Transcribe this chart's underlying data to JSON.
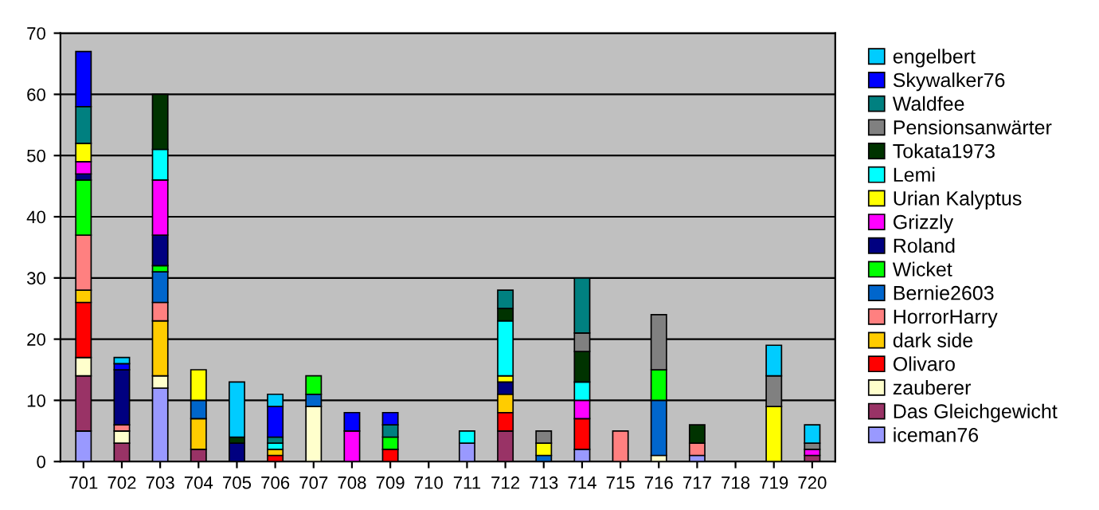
{
  "chart_data": {
    "type": "bar",
    "stacked": true,
    "categories": [
      "701",
      "702",
      "703",
      "704",
      "705",
      "706",
      "707",
      "708",
      "709",
      "710",
      "711",
      "712",
      "713",
      "714",
      "715",
      "716",
      "717",
      "718",
      "719",
      "720"
    ],
    "ylim": [
      0,
      70
    ],
    "yticks": [
      0,
      10,
      20,
      30,
      40,
      50,
      60,
      70
    ],
    "grid": "y",
    "legend": "right",
    "series": [
      {
        "name": "iceman76",
        "color": "#9999ff",
        "values": [
          5,
          null,
          12,
          null,
          null,
          null,
          null,
          null,
          null,
          null,
          3,
          null,
          null,
          2,
          null,
          null,
          1,
          null,
          null,
          null
        ]
      },
      {
        "name": "Das Gleichgewicht",
        "color": "#993366",
        "values": [
          9,
          3,
          null,
          2,
          null,
          null,
          null,
          null,
          null,
          null,
          null,
          5,
          null,
          null,
          null,
          null,
          null,
          null,
          null,
          1
        ]
      },
      {
        "name": "zauberer",
        "color": "#ffffcc",
        "values": [
          3,
          2,
          2,
          null,
          null,
          null,
          9,
          null,
          null,
          null,
          null,
          null,
          null,
          null,
          null,
          1,
          null,
          null,
          null,
          null
        ]
      },
      {
        "name": "Olivaro",
        "color": "#ff0000",
        "values": [
          9,
          null,
          null,
          null,
          null,
          1,
          null,
          null,
          2,
          null,
          null,
          3,
          null,
          5,
          null,
          null,
          null,
          null,
          null,
          null
        ]
      },
      {
        "name": "dark side",
        "color": "#ffcc00",
        "values": [
          2,
          null,
          9,
          5,
          null,
          1,
          null,
          null,
          null,
          null,
          null,
          3,
          null,
          null,
          null,
          null,
          null,
          null,
          null,
          null
        ]
      },
      {
        "name": "HorrorHarry",
        "color": "#ff8080",
        "values": [
          9,
          1,
          3,
          null,
          null,
          null,
          null,
          null,
          null,
          null,
          null,
          null,
          null,
          null,
          5,
          null,
          2,
          null,
          null,
          null
        ]
      },
      {
        "name": "Bernie2603",
        "color": "#0066cc",
        "values": [
          null,
          null,
          5,
          3,
          null,
          null,
          2,
          null,
          null,
          null,
          null,
          null,
          1,
          null,
          null,
          9,
          null,
          null,
          null,
          null
        ]
      },
      {
        "name": "Wicket",
        "color": "#00ff00",
        "values": [
          9,
          null,
          1,
          null,
          null,
          null,
          3,
          null,
          2,
          null,
          null,
          null,
          null,
          null,
          null,
          5,
          null,
          null,
          null,
          null
        ]
      },
      {
        "name": "Roland",
        "color": "#000080",
        "values": [
          1,
          9,
          5,
          null,
          3,
          null,
          null,
          null,
          null,
          null,
          null,
          2,
          null,
          null,
          null,
          null,
          null,
          null,
          null,
          null
        ]
      },
      {
        "name": "Grizzly",
        "color": "#ff00ff",
        "values": [
          2,
          null,
          9,
          null,
          null,
          null,
          null,
          5,
          null,
          null,
          null,
          null,
          null,
          3,
          null,
          null,
          null,
          null,
          null,
          1
        ]
      },
      {
        "name": "Urian Kalyptus",
        "color": "#ffff00",
        "values": [
          3,
          null,
          null,
          5,
          null,
          null,
          null,
          null,
          null,
          null,
          null,
          1,
          2,
          null,
          null,
          null,
          null,
          null,
          9,
          null
        ]
      },
      {
        "name": "Lemi",
        "color": "#00ffff",
        "values": [
          null,
          null,
          5,
          null,
          null,
          1,
          null,
          null,
          null,
          null,
          2,
          9,
          null,
          3,
          null,
          null,
          null,
          null,
          null,
          null
        ]
      },
      {
        "name": "Tokata1973",
        "color": "#003300",
        "values": [
          null,
          null,
          9,
          null,
          1,
          null,
          null,
          null,
          null,
          null,
          null,
          2,
          null,
          5,
          null,
          null,
          3,
          null,
          null,
          null
        ]
      },
      {
        "name": "Pensionsanwärter",
        "color": "#808080",
        "values": [
          null,
          null,
          null,
          null,
          null,
          null,
          null,
          null,
          null,
          null,
          null,
          null,
          2,
          3,
          null,
          9,
          null,
          null,
          5,
          1
        ]
      },
      {
        "name": "Waldfee",
        "color": "#008080",
        "values": [
          6,
          null,
          null,
          null,
          null,
          1,
          null,
          null,
          2,
          null,
          null,
          3,
          null,
          9,
          null,
          null,
          null,
          null,
          null,
          null
        ]
      },
      {
        "name": "Skywalker76",
        "color": "#0000ff",
        "values": [
          9,
          1,
          null,
          null,
          null,
          5,
          null,
          3,
          2,
          null,
          null,
          null,
          null,
          null,
          null,
          null,
          null,
          null,
          null,
          null
        ]
      },
      {
        "name": "engelbert",
        "color": "#00ccff",
        "values": [
          null,
          1,
          null,
          null,
          9,
          2,
          null,
          null,
          null,
          null,
          null,
          null,
          null,
          null,
          null,
          null,
          null,
          null,
          5,
          3
        ]
      }
    ]
  }
}
